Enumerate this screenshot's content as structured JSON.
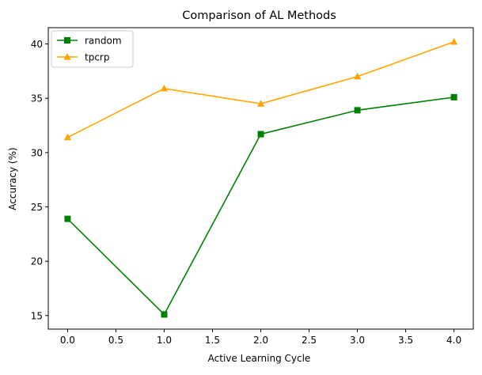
{
  "chart_data": {
    "type": "line",
    "title": "Comparison of AL Methods",
    "xlabel": "Active Learning Cycle",
    "ylabel": "Accuracy (%)",
    "x": [
      0.0,
      1.0,
      2.0,
      3.0,
      4.0
    ],
    "xlim": [
      -0.2,
      4.2
    ],
    "ylim": [
      13.75,
      41.5
    ],
    "xticks": [
      0.0,
      0.5,
      1.0,
      1.5,
      2.0,
      2.5,
      3.0,
      3.5,
      4.0
    ],
    "xtick_labels": [
      "0.0",
      "0.5",
      "1.0",
      "1.5",
      "2.0",
      "2.5",
      "3.0",
      "3.5",
      "4.0"
    ],
    "yticks": [
      15,
      20,
      25,
      30,
      35,
      40
    ],
    "ytick_labels": [
      "15",
      "20",
      "25",
      "30",
      "35",
      "40"
    ],
    "grid": false,
    "legend_position": "top-left",
    "series": [
      {
        "name": "random",
        "values": [
          23.9,
          15.1,
          31.7,
          33.9,
          35.1
        ],
        "color": "#008000",
        "marker": "square"
      },
      {
        "name": "tpcrp",
        "values": [
          31.4,
          35.9,
          34.5,
          37.0,
          40.2
        ],
        "color": "#FFA500",
        "marker": "triangle"
      }
    ]
  }
}
